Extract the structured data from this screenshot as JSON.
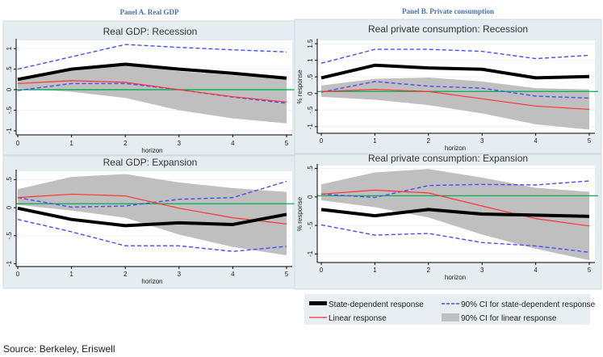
{
  "panels": {
    "a": "Panel A. Real GDP",
    "b": "Panel B. Private consumption"
  },
  "source": "Source: Berkeley, Eriswell",
  "legend": {
    "state": "State-dependent response",
    "linear": "Linear response",
    "ci_state": "90% CI for state-dependent response",
    "ci_linear": "90% CI for linear response"
  },
  "colors": {
    "state": "#000000",
    "linear": "#ff3333",
    "ci_state": "#4a4aff",
    "ci_linear": "#bfbfbf",
    "reference": "#00b050"
  },
  "chart_data": [
    {
      "type": "line",
      "title": "Real GDP: Recession",
      "xlabel": "horizon",
      "ylabel": "",
      "x": [
        0,
        1,
        2,
        3,
        4,
        5
      ],
      "ylim": [
        -1.1,
        1.2
      ],
      "yticks": [
        -1,
        -0.5,
        0,
        0.5,
        1
      ],
      "ytick_labels": [
        "-1",
        "-.5",
        "0",
        ".5",
        "1"
      ],
      "reference_line": 0,
      "series": [
        {
          "name": "State-dependent response",
          "values": [
            0.25,
            0.5,
            0.62,
            0.5,
            0.4,
            0.28
          ]
        },
        {
          "name": "Linear response",
          "values": [
            0.15,
            0.22,
            0.18,
            0,
            -0.17,
            -0.3
          ]
        },
        {
          "name": "90% CI for state-dependent response (upper)",
          "values": [
            0.5,
            0.8,
            1.1,
            1.03,
            0.97,
            0.92
          ]
        },
        {
          "name": "90% CI for state-dependent response (lower)",
          "values": [
            -0.02,
            0.15,
            0.15,
            0,
            -0.18,
            -0.33
          ]
        }
      ],
      "band": {
        "name": "90% CI for linear response",
        "upper": [
          0.22,
          0.45,
          0.6,
          0.45,
          0.35,
          0.25
        ],
        "lower": [
          0.03,
          -0.05,
          -0.2,
          -0.5,
          -0.7,
          -0.82
        ]
      }
    },
    {
      "type": "line",
      "title": "Real GDP: Expansion",
      "xlabel": "horizon",
      "ylabel": "",
      "x": [
        0,
        1,
        2,
        3,
        4,
        5
      ],
      "ylim": [
        -1.05,
        0.65
      ],
      "yticks": [
        -1,
        -0.5,
        0,
        0.5
      ],
      "ytick_labels": [
        "-1",
        "-.5",
        "0",
        ".5"
      ],
      "reference_line": 0.07,
      "series": [
        {
          "name": "State-dependent response",
          "values": [
            -0.01,
            -0.21,
            -0.32,
            -0.27,
            -0.3,
            -0.12
          ]
        },
        {
          "name": "Linear response",
          "values": [
            0.18,
            0.24,
            0.21,
            -0.01,
            -0.18,
            -0.29
          ]
        },
        {
          "name": "90% CI for state-dependent response (upper)",
          "values": [
            0.18,
            0.01,
            0.03,
            0.15,
            0.18,
            0.47
          ]
        },
        {
          "name": "90% CI for state-dependent response (lower)",
          "values": [
            -0.21,
            -0.43,
            -0.68,
            -0.68,
            -0.78,
            -0.69
          ]
        }
      ],
      "band": {
        "name": "90% CI for linear response",
        "upper": [
          0.33,
          0.55,
          0.6,
          0.45,
          0.35,
          0.28
        ],
        "lower": [
          0.05,
          -0.05,
          -0.18,
          -0.48,
          -0.7,
          -0.85
        ]
      }
    },
    {
      "type": "line",
      "title": "Real private consumption: Recession",
      "xlabel": "horizon",
      "ylabel": "% response",
      "x": [
        0,
        1,
        2,
        3,
        4,
        5
      ],
      "ylim": [
        -1.2,
        1.6
      ],
      "yticks": [
        -1,
        -0.5,
        0,
        0.5,
        1,
        1.5
      ],
      "ytick_labels": [
        "-1",
        "-.5",
        "0",
        ".5",
        "1",
        "1.5"
      ],
      "reference_line": 0.06,
      "series": [
        {
          "name": "State-dependent response",
          "values": [
            0.47,
            0.85,
            0.77,
            0.73,
            0.47,
            0.51
          ]
        },
        {
          "name": "Linear response",
          "values": [
            0.06,
            0.12,
            0.06,
            -0.16,
            -0.38,
            -0.48
          ]
        },
        {
          "name": "90% CI for state-dependent response (upper)",
          "values": [
            0.91,
            1.33,
            1.33,
            1.27,
            1.05,
            1.15
          ]
        },
        {
          "name": "90% CI for state-dependent response (lower)",
          "values": [
            0.04,
            0.36,
            0.22,
            0.16,
            -0.08,
            -0.14
          ]
        }
      ],
      "band": {
        "name": "90% CI for linear response",
        "upper": [
          0.24,
          0.44,
          0.48,
          0.36,
          0.16,
          0.12
        ],
        "lower": [
          -0.1,
          -0.19,
          -0.35,
          -0.6,
          -0.93,
          -1.09
        ]
      }
    },
    {
      "type": "line",
      "title": "Real private consumption: Expansion",
      "xlabel": "horizon",
      "ylabel": "% response",
      "x": [
        0,
        1,
        2,
        3,
        4,
        5
      ],
      "ylim": [
        -1.15,
        0.55
      ],
      "yticks": [
        -1,
        -0.5,
        0,
        0.5
      ],
      "ytick_labels": [
        "-1",
        "-.5",
        "0",
        ".5"
      ],
      "reference_line": 0.02,
      "series": [
        {
          "name": "State-dependent response",
          "values": [
            -0.22,
            -0.33,
            -0.22,
            -0.3,
            -0.32,
            -0.34
          ]
        },
        {
          "name": "Linear response",
          "values": [
            0.05,
            0.12,
            0.07,
            -0.16,
            -0.38,
            -0.51
          ]
        },
        {
          "name": "90% CI for state-dependent response (upper)",
          "values": [
            0.05,
            -0.01,
            0.2,
            0.22,
            0.21,
            0.28
          ]
        },
        {
          "name": "90% CI for state-dependent response (lower)",
          "values": [
            -0.49,
            -0.67,
            -0.64,
            -0.8,
            -0.86,
            -0.97
          ]
        }
      ],
      "band": {
        "name": "90% CI for linear response",
        "upper": [
          0.22,
          0.43,
          0.49,
          0.34,
          0.16,
          0.09
        ],
        "lower": [
          -0.06,
          -0.18,
          -0.36,
          -0.66,
          -0.91,
          -1.11
        ]
      }
    }
  ]
}
